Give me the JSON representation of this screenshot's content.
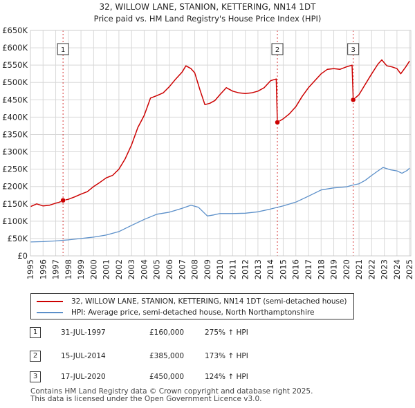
{
  "chart_data": {
    "type": "line",
    "title": "32, WILLOW LANE, STANION, KETTERING, NN14 1DT",
    "subtitle": "Price paid vs. HM Land Registry's House Price Index (HPI)",
    "xlabel": "",
    "ylabel": "",
    "xlim": [
      1995.0,
      2025.1
    ],
    "ylim": [
      0,
      650000
    ],
    "x_ticks": [
      1995,
      1996,
      1997,
      1998,
      1999,
      2000,
      2001,
      2002,
      2003,
      2004,
      2005,
      2006,
      2007,
      2008,
      2009,
      2010,
      2011,
      2012,
      2013,
      2014,
      2015,
      2016,
      2017,
      2018,
      2019,
      2020,
      2021,
      2022,
      2023,
      2024,
      2025
    ],
    "y_ticks": [
      {
        "value": 0,
        "label": "£0"
      },
      {
        "value": 50000,
        "label": "£50K"
      },
      {
        "value": 100000,
        "label": "£100K"
      },
      {
        "value": 150000,
        "label": "£150K"
      },
      {
        "value": 200000,
        "label": "£200K"
      },
      {
        "value": 250000,
        "label": "£250K"
      },
      {
        "value": 300000,
        "label": "£300K"
      },
      {
        "value": 350000,
        "label": "£350K"
      },
      {
        "value": 400000,
        "label": "£400K"
      },
      {
        "value": 450000,
        "label": "£450K"
      },
      {
        "value": 500000,
        "label": "£500K"
      },
      {
        "value": 550000,
        "label": "£550K"
      },
      {
        "value": 600000,
        "label": "£600K"
      },
      {
        "value": 650000,
        "label": "£650K"
      }
    ],
    "grid": true,
    "series": [
      {
        "name": "32, WILLOW LANE, STANION, KETTERING, NN14 1DT (semi-detached house)",
        "color": "#cc0000",
        "points": [
          [
            1995.0,
            142000
          ],
          [
            1995.5,
            150000
          ],
          [
            1996.0,
            144000
          ],
          [
            1996.5,
            146000
          ],
          [
            1997.0,
            152000
          ],
          [
            1997.3,
            155000
          ],
          [
            1997.58,
            160000
          ],
          [
            1998.0,
            163000
          ],
          [
            1998.5,
            170000
          ],
          [
            1999.0,
            178000
          ],
          [
            1999.5,
            185000
          ],
          [
            2000.0,
            200000
          ],
          [
            2000.5,
            212000
          ],
          [
            2001.0,
            225000
          ],
          [
            2001.5,
            232000
          ],
          [
            2002.0,
            250000
          ],
          [
            2002.5,
            280000
          ],
          [
            2003.0,
            320000
          ],
          [
            2003.5,
            370000
          ],
          [
            2004.0,
            405000
          ],
          [
            2004.5,
            455000
          ],
          [
            2005.0,
            462000
          ],
          [
            2005.5,
            470000
          ],
          [
            2006.0,
            488000
          ],
          [
            2006.5,
            510000
          ],
          [
            2007.0,
            530000
          ],
          [
            2007.3,
            548000
          ],
          [
            2007.7,
            540000
          ],
          [
            2008.0,
            528000
          ],
          [
            2008.4,
            480000
          ],
          [
            2008.8,
            436000
          ],
          [
            2009.2,
            440000
          ],
          [
            2009.6,
            448000
          ],
          [
            2010.0,
            465000
          ],
          [
            2010.5,
            485000
          ],
          [
            2011.0,
            475000
          ],
          [
            2011.5,
            470000
          ],
          [
            2012.0,
            468000
          ],
          [
            2012.5,
            470000
          ],
          [
            2013.0,
            475000
          ],
          [
            2013.5,
            485000
          ],
          [
            2014.0,
            505000
          ],
          [
            2014.45,
            510000
          ],
          [
            2014.54,
            385000
          ],
          [
            2015.0,
            395000
          ],
          [
            2015.5,
            410000
          ],
          [
            2016.0,
            430000
          ],
          [
            2016.5,
            460000
          ],
          [
            2017.0,
            485000
          ],
          [
            2017.5,
            505000
          ],
          [
            2018.0,
            525000
          ],
          [
            2018.5,
            538000
          ],
          [
            2019.0,
            540000
          ],
          [
            2019.5,
            538000
          ],
          [
            2020.0,
            545000
          ],
          [
            2020.45,
            550000
          ],
          [
            2020.54,
            450000
          ],
          [
            2021.0,
            465000
          ],
          [
            2021.5,
            495000
          ],
          [
            2022.0,
            525000
          ],
          [
            2022.5,
            553000
          ],
          [
            2022.8,
            565000
          ],
          [
            2023.2,
            548000
          ],
          [
            2023.6,
            545000
          ],
          [
            2024.0,
            540000
          ],
          [
            2024.3,
            525000
          ],
          [
            2024.7,
            545000
          ],
          [
            2025.0,
            562000
          ]
        ]
      },
      {
        "name": "HPI: Average price, semi-detached house, North Northamptonshire",
        "color": "#5b8fc9",
        "points": [
          [
            1995.0,
            40000
          ],
          [
            1996.0,
            41000
          ],
          [
            1997.0,
            43000
          ],
          [
            1998.0,
            46000
          ],
          [
            1999.0,
            50000
          ],
          [
            2000.0,
            54000
          ],
          [
            2001.0,
            60000
          ],
          [
            2002.0,
            70000
          ],
          [
            2003.0,
            88000
          ],
          [
            2004.0,
            105000
          ],
          [
            2005.0,
            120000
          ],
          [
            2006.0,
            126000
          ],
          [
            2007.0,
            137000
          ],
          [
            2007.7,
            146000
          ],
          [
            2008.3,
            140000
          ],
          [
            2009.0,
            115000
          ],
          [
            2009.5,
            118000
          ],
          [
            2010.0,
            122000
          ],
          [
            2011.0,
            122000
          ],
          [
            2012.0,
            123000
          ],
          [
            2013.0,
            127000
          ],
          [
            2014.0,
            135000
          ],
          [
            2015.0,
            144000
          ],
          [
            2016.0,
            155000
          ],
          [
            2017.0,
            172000
          ],
          [
            2018.0,
            190000
          ],
          [
            2019.0,
            196000
          ],
          [
            2020.0,
            199000
          ],
          [
            2020.6,
            205000
          ],
          [
            2021.0,
            208000
          ],
          [
            2021.5,
            218000
          ],
          [
            2022.0,
            232000
          ],
          [
            2022.5,
            245000
          ],
          [
            2022.9,
            255000
          ],
          [
            2023.5,
            248000
          ],
          [
            2024.0,
            245000
          ],
          [
            2024.4,
            238000
          ],
          [
            2024.8,
            246000
          ],
          [
            2025.0,
            253000
          ]
        ]
      }
    ],
    "sales": [
      {
        "id": "1",
        "x": 1997.58,
        "y": 160000
      },
      {
        "id": "2",
        "x": 2014.54,
        "y": 385000
      },
      {
        "id": "3",
        "x": 2020.54,
        "y": 450000
      }
    ]
  },
  "legend": {
    "property_label": "32, WILLOW LANE, STANION, KETTERING, NN14 1DT (semi-detached house)",
    "hpi_label": "HPI: Average price, semi-detached house, North Northamptonshire"
  },
  "sales_table": [
    {
      "id": "1",
      "date": "31-JUL-1997",
      "price": "£160,000",
      "hpi": "275% ↑ HPI"
    },
    {
      "id": "2",
      "date": "15-JUL-2014",
      "price": "£385,000",
      "hpi": "173% ↑ HPI"
    },
    {
      "id": "3",
      "date": "17-JUL-2020",
      "price": "£450,000",
      "hpi": "124% ↑ HPI"
    }
  ],
  "footer": {
    "line1": "Contains HM Land Registry data © Crown copyright and database right 2025.",
    "line2": "This data is licensed under the Open Government Licence v3.0."
  },
  "colors": {
    "property": "#cc0000",
    "hpi": "#5b8fc9",
    "grid": "#d8d8d8",
    "marker_line": "#cc0000"
  }
}
